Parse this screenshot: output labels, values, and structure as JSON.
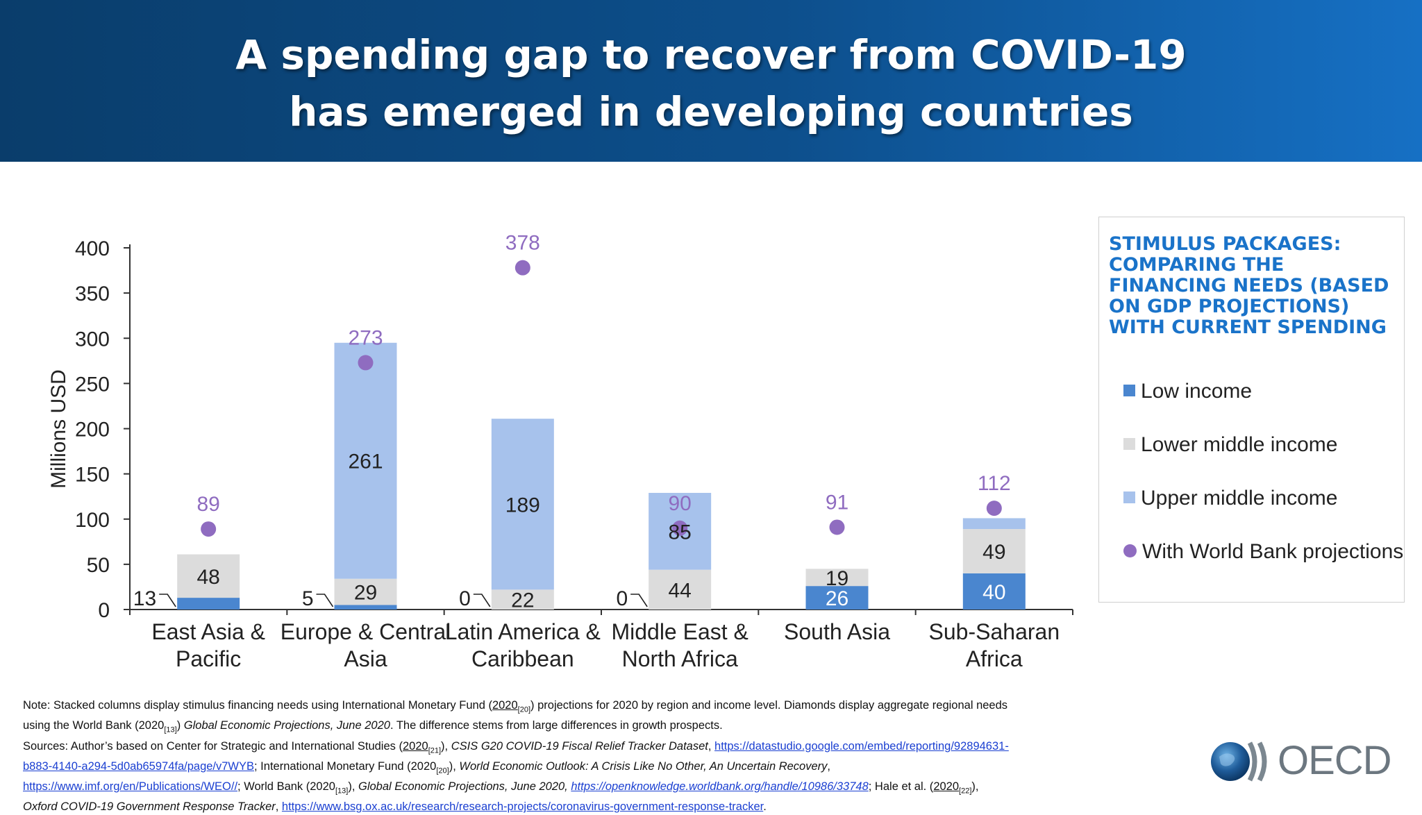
{
  "title": {
    "line1": "A spending gap to recover from COVID-19",
    "line2": "has emerged in developing countries"
  },
  "legend": {
    "title": "STIMULUS PACKAGES: COMPARING THE FINANCING NEEDS (BASED ON GDP PROJECTIONS) WITH CURRENT SPENDING",
    "items": [
      {
        "label": "Low income",
        "color": "#4a86cf",
        "shape": "square"
      },
      {
        "label": "Lower middle income",
        "color": "#dcdcdc",
        "shape": "square"
      },
      {
        "label": "Upper middle income",
        "color": "#a7c2ec",
        "shape": "square"
      },
      {
        "label": "With World Bank projections",
        "color": "#8f6cc0",
        "shape": "circle"
      }
    ]
  },
  "chart_data": {
    "type": "bar",
    "stacked": true,
    "ylabel": "Millions USD",
    "ylim": [
      0,
      400
    ],
    "yticks": [
      0,
      50,
      100,
      150,
      200,
      250,
      300,
      350,
      400
    ],
    "categories": [
      [
        "East Asia &",
        "Pacific"
      ],
      [
        "Europe & Central",
        "Asia"
      ],
      [
        "Latin America &",
        "Caribbean"
      ],
      [
        "Middle East &",
        "North Africa"
      ],
      [
        "South Asia"
      ],
      [
        "Sub-Saharan",
        "Africa"
      ]
    ],
    "series": [
      {
        "name": "Low income",
        "color": "#4a86cf",
        "values": [
          13,
          5,
          0,
          0,
          26,
          40
        ],
        "labels": [
          "13",
          "5",
          "0",
          "0",
          "26",
          "40"
        ]
      },
      {
        "name": "Lower middle income",
        "color": "#dcdcdc",
        "values": [
          48,
          29,
          22,
          44,
          19,
          49
        ],
        "labels": [
          "48",
          "29",
          "22",
          "44",
          "19",
          "49"
        ]
      },
      {
        "name": "Upper middle income",
        "color": "#a7c2ec",
        "values": [
          0,
          261,
          189,
          85,
          0,
          12
        ],
        "labels": [
          "",
          "261",
          "189",
          "85",
          "",
          "12"
        ]
      },
      {
        "name": "With World Bank projections",
        "color": "#8f6cc0",
        "type": "scatter",
        "values": [
          89,
          273,
          378,
          90,
          91,
          112
        ],
        "labels": [
          "89",
          "273",
          "378",
          "90",
          "91",
          "112"
        ]
      }
    ]
  },
  "notes": {
    "line1a": "Note: Stacked columns display stimulus financing needs using International Monetary Fund (",
    "line1b": "2020",
    "line1c": "[20]",
    "line1d": ") projections for 2020 by region and income level. Diamonds display aggregate regional needs",
    "line2a": "using the World Bank (2020",
    "line2b": "[13]",
    "line2c": ") ",
    "line2d": "Global Economic Projections, June 2020",
    "line2e": ". The difference stems from large differences in growth prospects.",
    "line3a": "Sources: Author’s based on Center for Strategic and International Studies (",
    "line3b": "2020",
    "line3c": "[21]",
    "line3d": "), ",
    "line3e": "CSIS G20 COVID-19 Fiscal Relief Tracker Dataset",
    "line3f": ", ",
    "line3g": "https://datastudio.google.com/embed/reporting/92894631-",
    "line4a": "b883-4140-a294-5d0ab65974fa/page/v7WYB",
    "line4b": "; International Monetary Fund (2020",
    "line4c": "[20]",
    "line4d": "), ",
    "line4e": "World Economic Outlook: A Crisis Like No Other, An Uncertain Recovery",
    "line4f": ",",
    "line5a": "https://www.imf.org/en/Publications/WEO//",
    "line5b": "; World Bank (2020",
    "line5c": "[13]",
    "line5d": "), ",
    "line5e": "Global Economic Projections, June 2020, ",
    "line5f": "https://openknowledge.worldbank.org/handle/10986/33748",
    "line5g": "; Hale et al. (",
    "line5h": "2020",
    "line5i": "[22]",
    "line5j": "),",
    "line6a": "Oxford COVID-19 Government Response Tracker",
    "line6b": ", ",
    "line6c": "https://www.bsg.ox.ac.uk/research/research-projects/coronavirus-government-response-tracker",
    "line6d": "."
  },
  "logo": {
    "text": "OECD"
  }
}
